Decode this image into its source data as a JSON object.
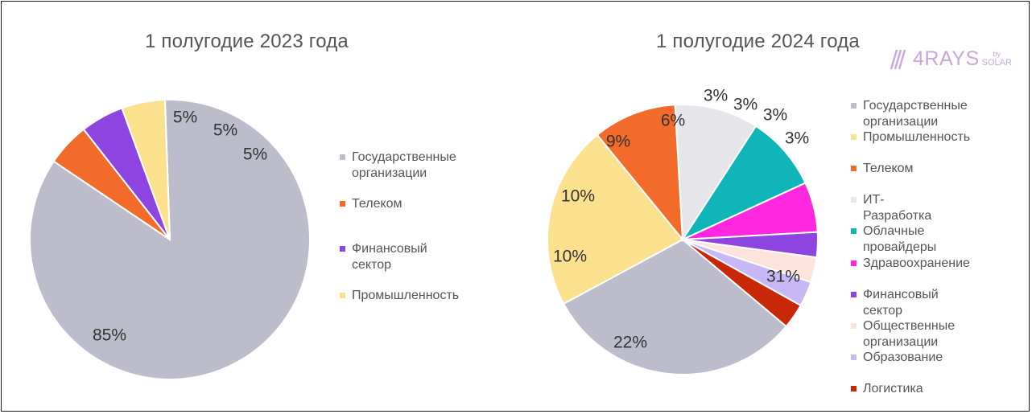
{
  "logo": {
    "text": "4RAYS",
    "by": "by",
    "brand": "SOLAR"
  },
  "chart_data": [
    {
      "type": "pie",
      "title": "1 полугодие 2023 года",
      "slices": [
        {
          "label": "Государственные\nорганизации",
          "value": 85,
          "display": "85%",
          "color": "#bcbccb"
        },
        {
          "label": "Телеком",
          "value": 5,
          "display": "5%",
          "color": "#f26b2a"
        },
        {
          "label": "Финансовый сектор",
          "value": 5,
          "display": "5%",
          "color": "#8e44e0"
        },
        {
          "label": "Промышленность",
          "value": 5,
          "display": "5%",
          "color": "#fbe08e"
        }
      ],
      "legend_order": [
        0,
        1,
        2,
        3
      ]
    },
    {
      "type": "pie",
      "title": "1 полугодие 2024 года",
      "slices": [
        {
          "label": "Государственные\nорганизации",
          "value": 31,
          "display": "31%",
          "color": "#bcbccb"
        },
        {
          "label": "Промышленность",
          "value": 22,
          "display": "22%",
          "color": "#fbe08e"
        },
        {
          "label": "Телеком",
          "value": 10,
          "display": "10%",
          "color": "#f26b2a"
        },
        {
          "label": "ИТ-Разработка",
          "value": 10,
          "display": "10%",
          "color": "#e6e6ea"
        },
        {
          "label": "Облачные\nпровайдеры",
          "value": 9,
          "display": "9%",
          "color": "#0fb5b8"
        },
        {
          "label": "Здравоохранение",
          "value": 6,
          "display": "6%",
          "color": "#ff28e0"
        },
        {
          "label": "Финансовый сектор",
          "value": 3,
          "display": "3%",
          "color": "#8e44e0"
        },
        {
          "label": "Общественные\nорганизации",
          "value": 3,
          "display": "3%",
          "color": "#fde3dc"
        },
        {
          "label": "Образование",
          "value": 3,
          "display": "3%",
          "color": "#c7b8f5"
        },
        {
          "label": "Логистика",
          "value": 3,
          "display": "3%",
          "color": "#c82808"
        }
      ],
      "legend_order": [
        0,
        1,
        2,
        3,
        4,
        5,
        6,
        7,
        8,
        9
      ]
    }
  ]
}
